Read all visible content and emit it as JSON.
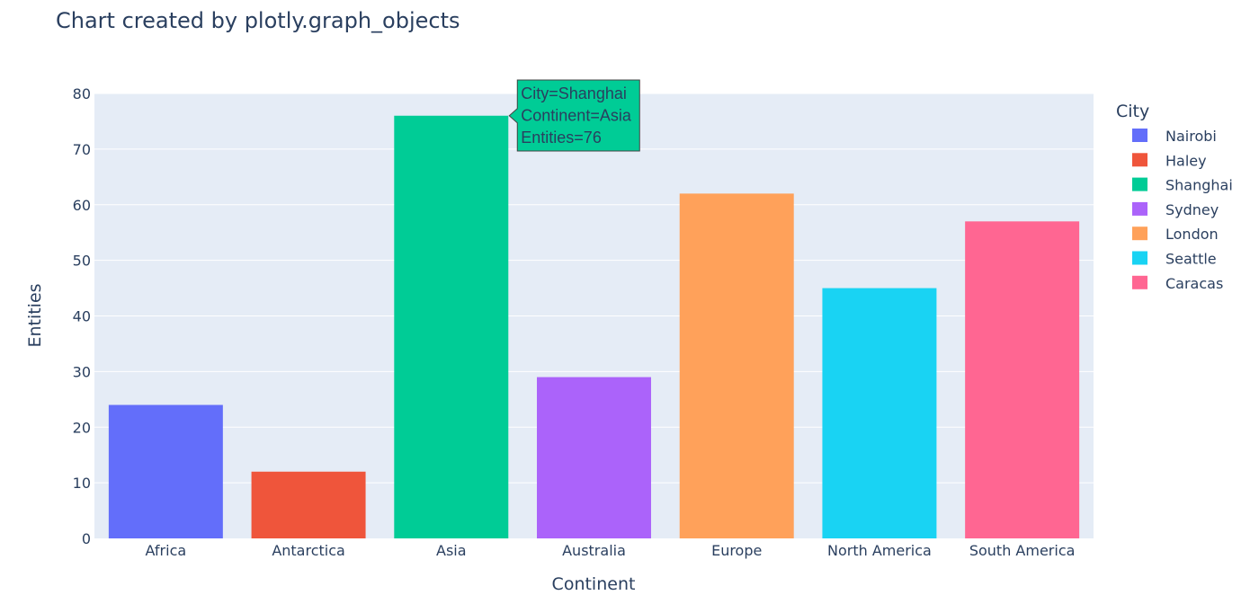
{
  "chart_data": {
    "type": "bar",
    "title": "Chart created by plotly.graph_objects",
    "xlabel": "Continent",
    "ylabel": "Entities",
    "ylim": [
      0,
      80
    ],
    "yticks": [
      0,
      10,
      20,
      30,
      40,
      50,
      60,
      70,
      80
    ],
    "grid": true,
    "legend_title": "City",
    "legend_placement": "right",
    "series": [
      {
        "name": "Nairobi",
        "category": "Africa",
        "value": 24,
        "color": "#636efa"
      },
      {
        "name": "Haley",
        "category": "Antarctica",
        "value": 12,
        "color": "#ef553b"
      },
      {
        "name": "Shanghai",
        "category": "Asia",
        "value": 76,
        "color": "#00cc96"
      },
      {
        "name": "Sydney",
        "category": "Australia",
        "value": 29,
        "color": "#ab63fa"
      },
      {
        "name": "London",
        "category": "Europe",
        "value": 62,
        "color": "#ffa15a"
      },
      {
        "name": "Seattle",
        "category": "North America",
        "value": 45,
        "color": "#19d3f3"
      },
      {
        "name": "Caracas",
        "category": "South America",
        "value": 57,
        "color": "#ff6692"
      }
    ],
    "tooltip": {
      "series_index": 2,
      "lines": [
        "City=Shanghai",
        "Continent=Asia",
        "Entities=76"
      ]
    }
  },
  "colors": {
    "plot_background": "#e5ecf6",
    "gridline": "#ffffff",
    "text": "#2a3f5f",
    "tooltip_border": "#444444"
  }
}
